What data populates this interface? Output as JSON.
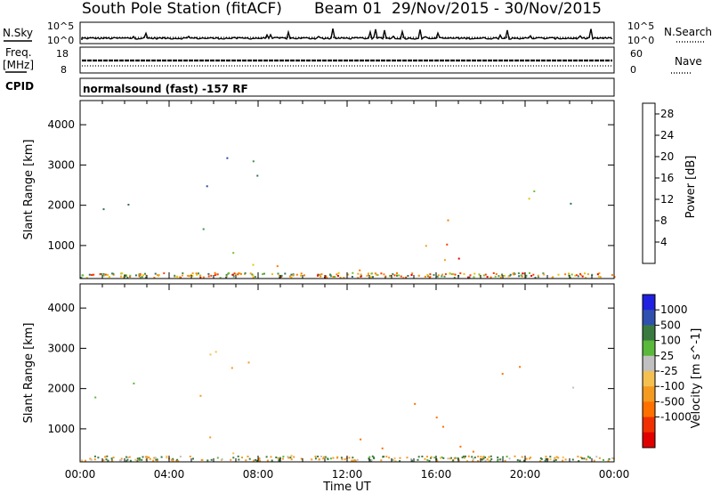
{
  "header": {
    "station": "South Pole Station (fitACF)",
    "beam": "Beam 01",
    "date_range": "29/Nov/2015 - 30/Nov/2015"
  },
  "ancillary": {
    "nsky_label": "N.Sky",
    "nsky_ticks": [
      "10^5",
      "10^0"
    ],
    "nsearch_label": "N.Search",
    "nsearch_ticks": [
      "10^5",
      "10^0"
    ],
    "freq_label": "Freq.",
    "freq_unit": "[MHz]",
    "freq_ticks": [
      "18",
      "8"
    ],
    "nave_label": "Nave",
    "nave_ticks": [
      "60",
      "0"
    ],
    "cpid_label": "CPID",
    "cpid_value": "normalsound (fast) -157 RF"
  },
  "colors": {
    "power_scale": [
      "#1f1fff",
      "#2a4aa8",
      "#2f6f66",
      "#3f8f4f",
      "#6fc030",
      "#e6c400",
      "#f0a020",
      "#ff7a00",
      "#ff3a00",
      "#e80000"
    ],
    "velocity_scale": [
      "#2020e0",
      "#3050b0",
      "#3a7a40",
      "#5ab83a",
      "#c0c0c0",
      "#f4c050",
      "#f49a20",
      "#ff7000",
      "#f03000",
      "#e00000"
    ]
  },
  "chart_data": [
    {
      "type": "heatmap",
      "title": "Power",
      "xlabel": "Time UT",
      "ylabel": "Slant Range [km]",
      "x_ticks": [
        "00:00",
        "04:00",
        "08:00",
        "12:00",
        "16:00",
        "20:00",
        "00:00"
      ],
      "xlim_hours": [
        0,
        24
      ],
      "y_ticks": [
        "1000",
        "2000",
        "3000",
        "4000"
      ],
      "ylim": [
        180,
        4600
      ],
      "colorbar": {
        "label": "Power [dB]",
        "ticks": [
          "4",
          "8",
          "12",
          "16",
          "20",
          "24",
          "28"
        ],
        "range": [
          0,
          30
        ]
      },
      "features": [
        {
          "t": [
            0.0,
            1.6
          ],
          "r": [
            1600,
            2300
          ],
          "v": 7
        },
        {
          "t": [
            2.0,
            3.0
          ],
          "r": [
            1700,
            2200
          ],
          "v": 6
        },
        {
          "t": [
            4.5,
            5.6
          ],
          "r": [
            1200,
            2100
          ],
          "v": 9
        },
        {
          "t": [
            5.8,
            7.2
          ],
          "r": [
            800,
            1400
          ],
          "v": 14
        },
        {
          "t": [
            6.0,
            9.0
          ],
          "r": [
            300,
            700
          ],
          "v": 18
        },
        {
          "t": [
            8.6,
            11.2
          ],
          "r": [
            300,
            700
          ],
          "v": 24
        },
        {
          "t": [
            11.0,
            15.2
          ],
          "r": [
            300,
            800
          ],
          "v": 22
        },
        {
          "t": [
            15.0,
            16.6
          ],
          "r": [
            500,
            2000
          ],
          "v": 20
        },
        {
          "t": [
            16.2,
            18.4
          ],
          "r": [
            400,
            1100
          ],
          "v": 27
        },
        {
          "t": [
            18.6,
            20.6
          ],
          "r": [
            1700,
            2600
          ],
          "v": 13
        },
        {
          "t": [
            20.6,
            22.2
          ],
          "r": [
            1800,
            2500
          ],
          "v": 9
        },
        {
          "t": [
            5.4,
            8.6
          ],
          "r": [
            2400,
            3600
          ],
          "v": 7
        }
      ]
    },
    {
      "type": "heatmap",
      "title": "Velocity",
      "xlabel": "Time UT",
      "ylabel": "Slant Range [km]",
      "x_ticks": [
        "00:00",
        "04:00",
        "08:00",
        "12:00",
        "16:00",
        "20:00",
        "00:00"
      ],
      "xlim_hours": [
        0,
        24
      ],
      "y_ticks": [
        "1000",
        "2000",
        "3000",
        "4000"
      ],
      "ylim": [
        180,
        4600
      ],
      "colorbar": {
        "label": "Velocity [m s^-1]",
        "ticks": [
          "1000",
          "500",
          "100",
          "25",
          "-25",
          "-100",
          "-500",
          "-1000"
        ],
        "range": [
          -1000,
          1000
        ]
      },
      "features": [
        {
          "t": [
            0.0,
            1.6
          ],
          "r": [
            1600,
            2300
          ],
          "v": 0
        },
        {
          "t": [
            2.0,
            3.0
          ],
          "r": [
            1700,
            2200
          ],
          "v": 10
        },
        {
          "t": [
            4.5,
            5.6
          ],
          "r": [
            1200,
            2100
          ],
          "v": -150
        },
        {
          "t": [
            5.8,
            7.2
          ],
          "r": [
            800,
            1400
          ],
          "v": -200
        },
        {
          "t": [
            6.0,
            9.0
          ],
          "r": [
            300,
            700
          ],
          "v": -60
        },
        {
          "t": [
            8.6,
            11.2
          ],
          "r": [
            300,
            700
          ],
          "v": -80
        },
        {
          "t": [
            11.0,
            15.2
          ],
          "r": [
            300,
            800
          ],
          "v": -300
        },
        {
          "t": [
            15.0,
            16.6
          ],
          "r": [
            500,
            2000
          ],
          "v": -600
        },
        {
          "t": [
            16.2,
            18.4
          ],
          "r": [
            400,
            1100
          ],
          "v": -500
        },
        {
          "t": [
            18.6,
            20.6
          ],
          "r": [
            1700,
            2600
          ],
          "v": -700
        },
        {
          "t": [
            20.6,
            22.2
          ],
          "r": [
            1800,
            2500
          ],
          "v": 0
        },
        {
          "t": [
            5.4,
            8.6
          ],
          "r": [
            2400,
            3600
          ],
          "v": -100
        }
      ]
    }
  ]
}
